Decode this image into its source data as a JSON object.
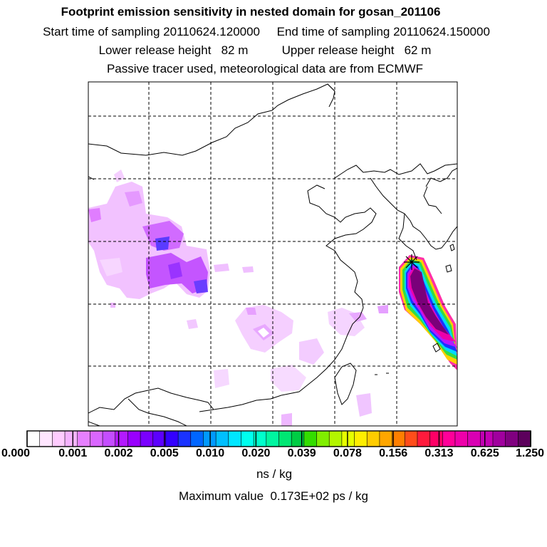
{
  "header": {
    "title": "Footprint emission sensitivity in nested domain for gosan_201106",
    "sampling_line": "Start time of sampling 20110624.120000     End time of sampling 20110624.150000",
    "release_line": "Lower release height   82 m          Upper release height   62 m",
    "tracer_line": "Passive tracer used, meteorological data are from ECMWF"
  },
  "legend": {
    "labels": [
      "0.000",
      "0.001",
      "0.002",
      "0.005",
      "0.010",
      "0.020",
      "0.039",
      "0.078",
      "0.156",
      "0.313",
      "0.625",
      "1.250"
    ],
    "colors": [
      "#ffffff",
      "#ffe6ff",
      "#ffccff",
      "#f5b3ff",
      "#e680ff",
      "#d966ff",
      "#c44dff",
      "#b31aff",
      "#9900ff",
      "#7a00ff",
      "#5c00ff",
      "#3300ff",
      "#1a33ff",
      "#0066ff",
      "#0099ff",
      "#00bfff",
      "#00e6ff",
      "#00ffee",
      "#00ffcc",
      "#00f5a0",
      "#00e673",
      "#00cc44",
      "#33dd00",
      "#80ee00",
      "#b3f500",
      "#e6ff00",
      "#ffee00",
      "#ffcc00",
      "#ffa600",
      "#ff7f00",
      "#ff4d1a",
      "#ff1a3c",
      "#ff0066",
      "#ff0099",
      "#ee00aa",
      "#d900b3",
      "#c200b3",
      "#a0009e",
      "#800080",
      "#5c005c"
    ],
    "units": "ns / kg",
    "max_value": "Maximum value  0.173E+02 ps / kg"
  },
  "map": {
    "receptor_site": "gosan"
  }
}
